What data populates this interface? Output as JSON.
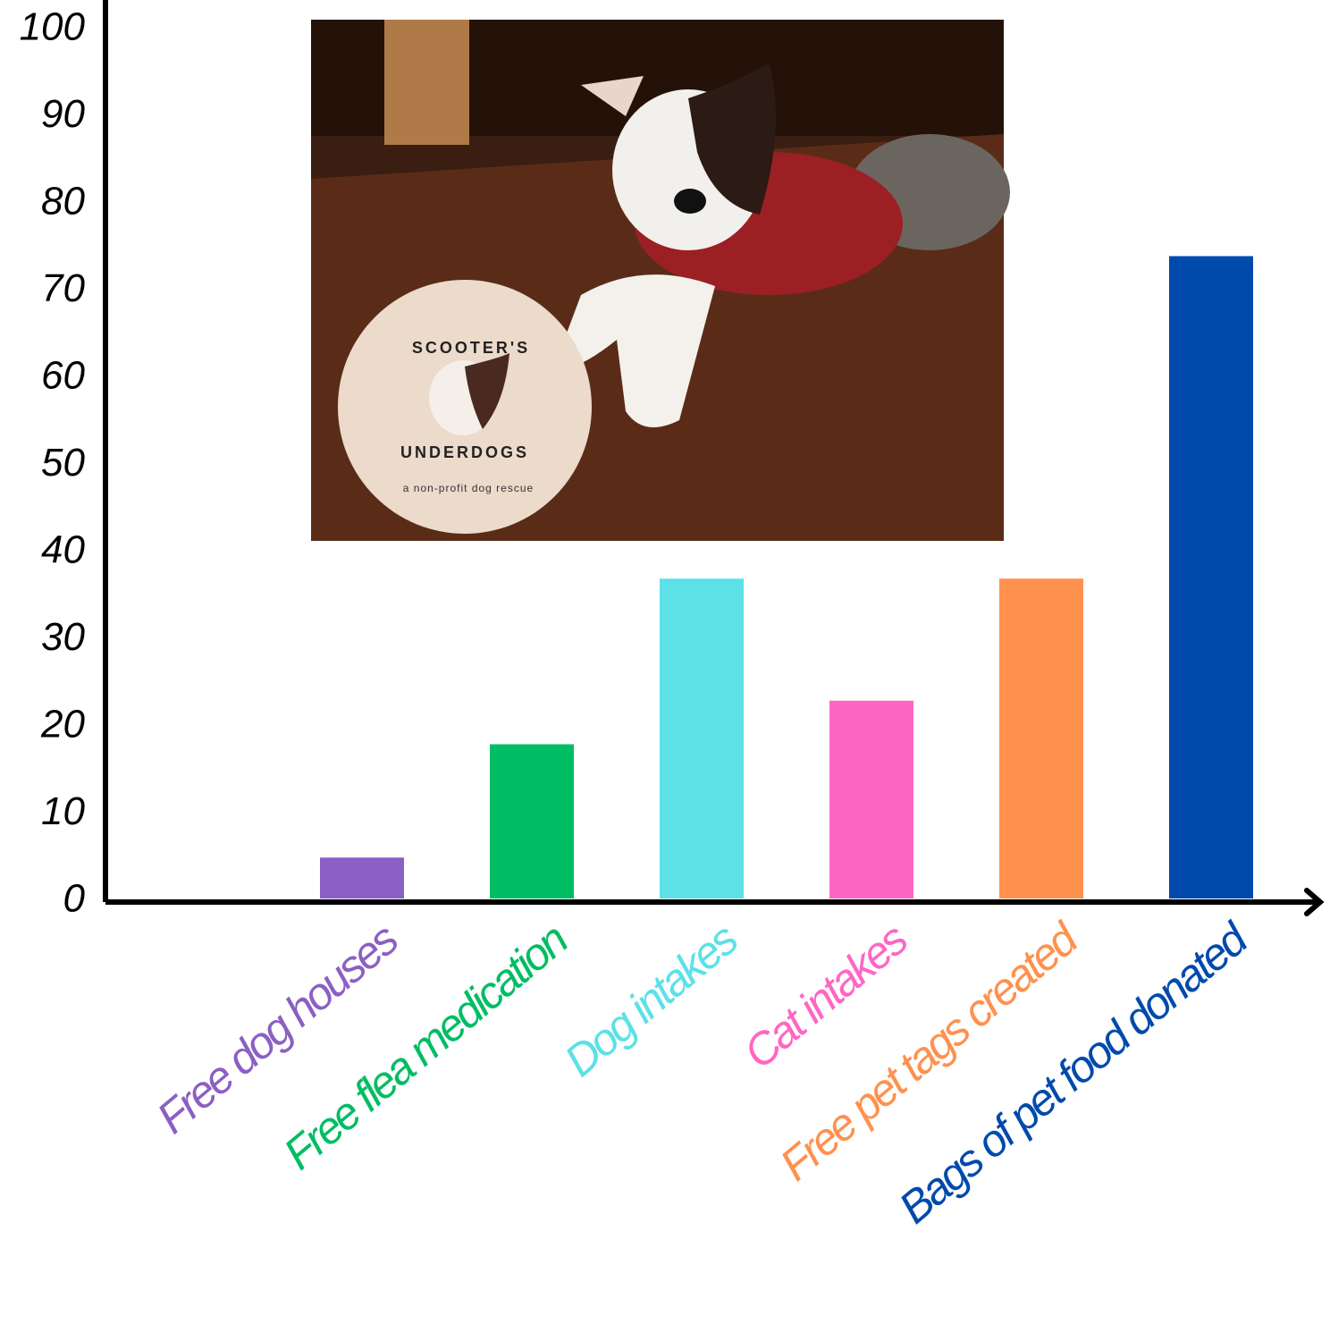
{
  "chart_data": {
    "type": "bar",
    "categories": [
      "Free dog houses",
      "Free flea medication",
      "Dog intakes",
      "Cat intakes",
      "Free pet tags created",
      "Bags of pet food donated"
    ],
    "values": [
      5,
      18,
      37,
      23,
      37,
      74
    ],
    "colors": [
      "#8c5fc4",
      "#00bd63",
      "#5ce1e6",
      "#ff66c4",
      "#ff914d",
      "#004aad"
    ],
    "ylim": [
      0,
      100
    ],
    "yticks": [
      0,
      10,
      20,
      30,
      40,
      50,
      60,
      70,
      80,
      90,
      100
    ],
    "grid": false,
    "logo": {
      "top": "SCOOTER'S",
      "bottom": "UNDERDOGS",
      "tagline": "a non-profit dog rescue"
    }
  }
}
